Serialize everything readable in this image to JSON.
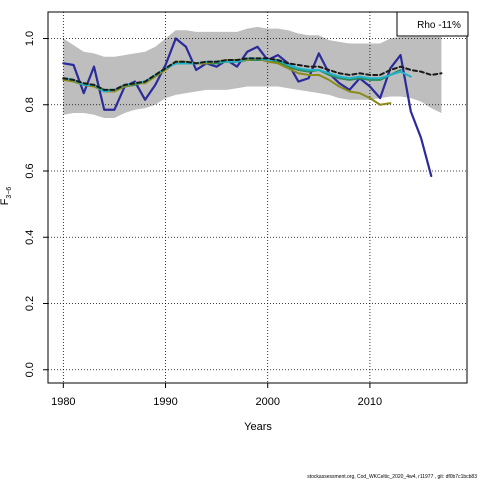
{
  "chart_data": {
    "type": "line",
    "title": "",
    "xlabel": "Years",
    "ylabel": "F",
    "ylabel_sub": "3−6",
    "xlim": [
      1978.5,
      2019.5
    ],
    "ylim": [
      -0.04,
      1.08
    ],
    "x_ticks": [
      1980,
      1990,
      2000,
      2010
    ],
    "x_tick_labels": [
      "1980",
      "1990",
      "2000",
      "2010"
    ],
    "y_ticks": [
      0.0,
      0.2,
      0.4,
      0.6,
      0.8,
      1.0
    ],
    "y_tick_labels": [
      "0.0",
      "0.2",
      "0.4",
      "0.6",
      "0.8",
      "1.0"
    ],
    "grid": true,
    "legend_text": "Rho -11%",
    "legend_position": "top-right",
    "footer": "stockassessment.org, Cod_WKCeltic_2020_4w4, r11977 , git: df0b7c1bcb83",
    "band": {
      "color": "#bebebe",
      "x": [
        1980,
        1981,
        1982,
        1983,
        1984,
        1985,
        1986,
        1987,
        1988,
        1989,
        1990,
        1991,
        1992,
        1993,
        1994,
        1995,
        1996,
        1997,
        1998,
        1999,
        2000,
        2001,
        2002,
        2003,
        2004,
        2005,
        2006,
        2007,
        2008,
        2009,
        2010,
        2011,
        2012,
        2013,
        2014,
        2015,
        2016,
        2017
      ],
      "upper": [
        1.0,
        0.98,
        0.96,
        0.955,
        0.945,
        0.945,
        0.95,
        0.955,
        0.96,
        0.975,
        1.0,
        1.025,
        1.025,
        1.02,
        1.02,
        1.02,
        1.02,
        1.02,
        1.03,
        1.035,
        1.03,
        1.03,
        1.025,
        1.015,
        1.01,
        1.01,
        0.995,
        0.99,
        0.985,
        0.985,
        0.985,
        0.985,
        1.0,
        1.005,
        1.005,
        1.005,
        1.005,
        1.005
      ],
      "lower": [
        0.77,
        0.775,
        0.775,
        0.77,
        0.76,
        0.76,
        0.775,
        0.785,
        0.79,
        0.8,
        0.82,
        0.83,
        0.835,
        0.84,
        0.845,
        0.845,
        0.845,
        0.85,
        0.855,
        0.855,
        0.855,
        0.855,
        0.85,
        0.845,
        0.84,
        0.835,
        0.83,
        0.82,
        0.815,
        0.815,
        0.815,
        0.82,
        0.825,
        0.825,
        0.82,
        0.81,
        0.79,
        0.775
      ]
    },
    "series": [
      {
        "color": "#2b2b9a",
        "width": 2.2,
        "dash": "",
        "x": [
          1980,
          1981,
          1982,
          1983,
          1984,
          1985,
          1986,
          1987,
          1988,
          1989,
          1990,
          1991,
          1992,
          1993,
          1994,
          1995,
          1996,
          1997,
          1998,
          1999,
          2000,
          2001,
          2002,
          2003,
          2004,
          2005,
          2006,
          2007,
          2008,
          2009,
          2010,
          2011,
          2012,
          2013,
          2014,
          2015,
          2016
        ],
        "values": [
          0.925,
          0.92,
          0.835,
          0.915,
          0.785,
          0.785,
          0.855,
          0.87,
          0.815,
          0.86,
          0.92,
          1.0,
          0.975,
          0.905,
          0.925,
          0.915,
          0.935,
          0.915,
          0.96,
          0.975,
          0.935,
          0.95,
          0.925,
          0.87,
          0.88,
          0.955,
          0.895,
          0.865,
          0.845,
          0.88,
          0.855,
          0.82,
          0.91,
          0.95,
          0.78,
          0.7,
          0.585
        ]
      },
      {
        "color": "#2e8b57",
        "width": 2,
        "dash": "",
        "x": [
          1980,
          1981,
          1982,
          1983,
          1984,
          1985,
          1986,
          1987,
          1988,
          1989,
          1990,
          1991,
          1992,
          1993,
          1994,
          1995,
          1996,
          1997,
          1998,
          1999,
          2000,
          2001,
          2002,
          2003,
          2004,
          2005,
          2006,
          2007,
          2008,
          2009,
          2010,
          2011,
          2012,
          2013
        ],
        "values": [
          0.88,
          0.875,
          0.86,
          0.86,
          0.845,
          0.845,
          0.855,
          0.86,
          0.87,
          0.89,
          0.91,
          0.925,
          0.925,
          0.925,
          0.925,
          0.925,
          0.93,
          0.93,
          0.935,
          0.935,
          0.935,
          0.93,
          0.915,
          0.905,
          0.9,
          0.905,
          0.89,
          0.88,
          0.875,
          0.88,
          0.875,
          0.875,
          0.89,
          0.905
        ]
      },
      {
        "color": "#8b8b1a",
        "width": 2,
        "dash": "",
        "x": [
          1980,
          1981,
          1982,
          1983,
          1984,
          1985,
          1986,
          1987,
          1988,
          1989,
          1990,
          1991,
          1992,
          1993,
          1994,
          1995,
          1996,
          1997,
          1998,
          1999,
          2000,
          2001,
          2002,
          2003,
          2004,
          2005,
          2006,
          2007,
          2008,
          2009,
          2010,
          2011,
          2012
        ],
        "values": [
          0.875,
          0.87,
          0.86,
          0.855,
          0.84,
          0.84,
          0.855,
          0.865,
          0.865,
          0.885,
          0.905,
          0.93,
          0.93,
          0.925,
          0.925,
          0.93,
          0.935,
          0.935,
          0.935,
          0.94,
          0.93,
          0.925,
          0.91,
          0.895,
          0.89,
          0.89,
          0.875,
          0.855,
          0.84,
          0.835,
          0.82,
          0.8,
          0.805
        ]
      },
      {
        "color": "#20b2c8",
        "width": 2,
        "dash": "",
        "x": [
          1980,
          1981,
          1982,
          1983,
          1984,
          1985,
          1986,
          1987,
          1988,
          1989,
          1990,
          1991,
          1992,
          1993,
          1994,
          1995,
          1996,
          1997,
          1998,
          1999,
          2000,
          2001,
          2002,
          2003,
          2004,
          2005,
          2006,
          2007,
          2008,
          2009,
          2010,
          2011,
          2012,
          2013,
          2014
        ],
        "values": [
          0.88,
          0.875,
          0.86,
          0.86,
          0.84,
          0.845,
          0.86,
          0.865,
          0.87,
          0.89,
          0.91,
          0.925,
          0.925,
          0.925,
          0.93,
          0.93,
          0.93,
          0.93,
          0.94,
          0.94,
          0.935,
          0.935,
          0.92,
          0.91,
          0.905,
          0.905,
          0.895,
          0.885,
          0.88,
          0.885,
          0.88,
          0.88,
          0.89,
          0.9,
          0.885
        ]
      },
      {
        "color": "#1a1a1a",
        "width": 2,
        "dash": "4,3",
        "x": [
          1980,
          1981,
          1982,
          1983,
          1984,
          1985,
          1986,
          1987,
          1988,
          1989,
          1990,
          1991,
          1992,
          1993,
          1994,
          1995,
          1996,
          1997,
          1998,
          1999,
          2000,
          2001,
          2002,
          2003,
          2004,
          2005,
          2006,
          2007,
          2008,
          2009,
          2010,
          2011,
          2012,
          2013,
          2014,
          2015,
          2016,
          2017
        ],
        "values": [
          0.88,
          0.875,
          0.865,
          0.86,
          0.845,
          0.845,
          0.86,
          0.865,
          0.87,
          0.89,
          0.91,
          0.93,
          0.93,
          0.925,
          0.93,
          0.93,
          0.935,
          0.935,
          0.94,
          0.94,
          0.94,
          0.935,
          0.925,
          0.92,
          0.915,
          0.915,
          0.905,
          0.895,
          0.89,
          0.895,
          0.89,
          0.89,
          0.905,
          0.915,
          0.905,
          0.9,
          0.89,
          0.895
        ]
      }
    ]
  }
}
